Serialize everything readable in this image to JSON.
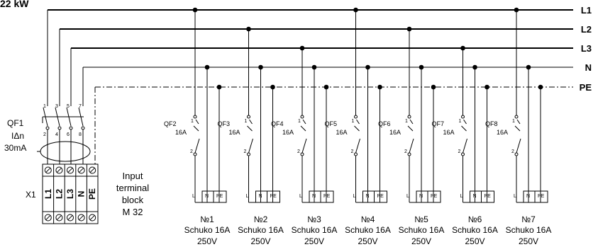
{
  "title": "22 kW",
  "buses": [
    "L1",
    "L2",
    "L3",
    "N",
    "PE"
  ],
  "main_breaker": {
    "name": "QF1",
    "rating": "IΔn",
    "current": "30mA",
    "top_pins": [
      "1",
      "3",
      "5",
      "7"
    ],
    "bottom_pins": [
      "2",
      "4",
      "6",
      "8"
    ]
  },
  "terminal_block": {
    "name": "X1",
    "labels": [
      "L1",
      "L2",
      "L3",
      "N",
      "PE"
    ],
    "caption": [
      "Input",
      "terminal",
      "block",
      "M 32"
    ]
  },
  "outlets": [
    {
      "breaker": "QF2",
      "rating": "16A",
      "number": "№1",
      "type": "Schuko 16A",
      "voltage": "250V"
    },
    {
      "breaker": "QF3",
      "rating": "16A",
      "number": "№2",
      "type": "Schuko 16A",
      "voltage": "250V"
    },
    {
      "breaker": "QF4",
      "rating": "16A",
      "number": "№3",
      "type": "Schuko 16A",
      "voltage": "250V"
    },
    {
      "breaker": "QF5",
      "rating": "16A",
      "number": "№4",
      "type": "Schuko 16A",
      "voltage": "250V"
    },
    {
      "breaker": "QF6",
      "rating": "16A",
      "number": "№5",
      "type": "Schuko 16A",
      "voltage": "250V"
    },
    {
      "breaker": "QF7",
      "rating": "16A",
      "number": "№6",
      "type": "Schuko 16A",
      "voltage": "250V"
    },
    {
      "breaker": "QF8",
      "rating": "16A",
      "number": "№7",
      "type": "Schuko 16A",
      "voltage": "250V"
    }
  ],
  "outlet_pin_labels": {
    "top": "1",
    "bottom": "2"
  },
  "outlet_terminals": [
    "L",
    "N",
    "PE"
  ],
  "outlet_phase": [
    "L1",
    "L2",
    "L3",
    "L1",
    "L2",
    "L3",
    "L1"
  ]
}
